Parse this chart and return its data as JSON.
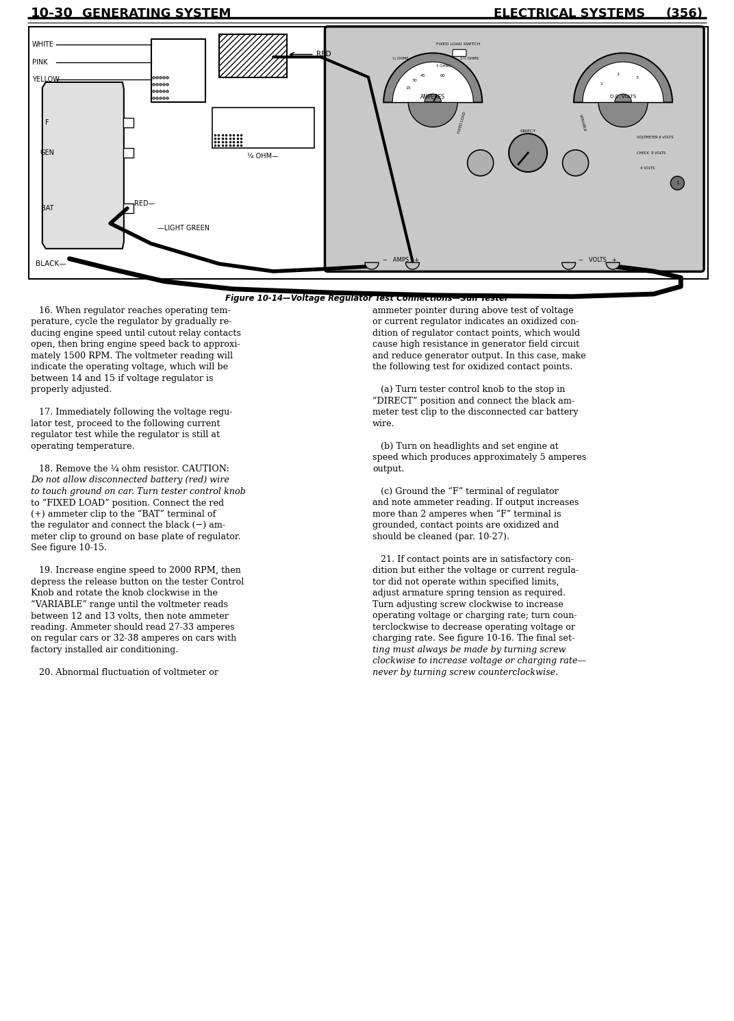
{
  "page_width": 10.52,
  "page_height": 14.64,
  "dpi": 100,
  "bg_color": "#ffffff",
  "header_left": "10-30",
  "header_left2": "GENERATING SYSTEM",
  "header_right": "ELECTRICAL SYSTEMS",
  "header_right2": "(356)",
  "figure_caption": "Figure 10-14—Voltage Regulator Test Connections—Sun Tester",
  "body_left_col_lines": [
    {
      "text": "   16. When regulator reaches operating tem-",
      "style": "normal"
    },
    {
      "text": "perature, cycle the regulator by gradually re-",
      "style": "normal"
    },
    {
      "text": "ducing engine speed until cutout relay contacts",
      "style": "normal"
    },
    {
      "text": "open, then bring engine speed back to approxi-",
      "style": "normal"
    },
    {
      "text": "mately 1500 RPM. The voltmeter reading will",
      "style": "normal"
    },
    {
      "text": "indicate the operating voltage, which will be",
      "style": "normal"
    },
    {
      "text": "between 14 and 15 if voltage regulator is",
      "style": "normal"
    },
    {
      "text": "properly adjusted.",
      "style": "normal"
    },
    {
      "text": "",
      "style": "normal"
    },
    {
      "text": "   17. Immediately following the voltage regu-",
      "style": "normal"
    },
    {
      "text": "lator test, proceed to the following current",
      "style": "normal"
    },
    {
      "text": "regulator test while the regulator is still at",
      "style": "normal"
    },
    {
      "text": "operating temperature.",
      "style": "normal"
    },
    {
      "text": "",
      "style": "normal"
    },
    {
      "text": "   18. Remove the ¼ ohm resistor. CAUTION:",
      "style": "normal"
    },
    {
      "text": "Do not allow disconnected battery (red) wire",
      "style": "italic"
    },
    {
      "text": "to touch ground on car. Turn tester control knob",
      "style": "italic"
    },
    {
      "text": "to “FIXED LOAD” position. Connect the red",
      "style": "normal"
    },
    {
      "text": "(+) ammeter clip to the “BAT” terminal of",
      "style": "normal"
    },
    {
      "text": "the regulator and connect the black (−) am-",
      "style": "normal"
    },
    {
      "text": "meter clip to ground on base plate of regulator.",
      "style": "normal"
    },
    {
      "text": "See figure 10-15.",
      "style": "normal"
    },
    {
      "text": "",
      "style": "normal"
    },
    {
      "text": "   19. Increase engine speed to 2000 RPM, then",
      "style": "normal"
    },
    {
      "text": "depress the release button on the tester Control",
      "style": "normal"
    },
    {
      "text": "Knob and rotate the knob clockwise in the",
      "style": "normal"
    },
    {
      "text": "“VARIABLE” range until the voltmeter reads",
      "style": "normal"
    },
    {
      "text": "between 12 and 13 volts, then note ammeter",
      "style": "normal"
    },
    {
      "text": "reading. Ammeter should read 27-33 amperes",
      "style": "normal"
    },
    {
      "text": "on regular cars or 32-38 amperes on cars with",
      "style": "normal"
    },
    {
      "text": "factory installed air conditioning.",
      "style": "normal"
    },
    {
      "text": "",
      "style": "normal"
    },
    {
      "text": "   20. Abnormal fluctuation of voltmeter or",
      "style": "normal"
    }
  ],
  "body_right_col_lines": [
    {
      "text": "ammeter pointer during above test of voltage",
      "style": "normal"
    },
    {
      "text": "or current regulator indicates an oxidized con-",
      "style": "normal"
    },
    {
      "text": "dition of regulator contact points, which would",
      "style": "normal"
    },
    {
      "text": "cause high resistance in generator field circuit",
      "style": "normal"
    },
    {
      "text": "and reduce generator output. In this case, make",
      "style": "normal"
    },
    {
      "text": "the following test for oxidized contact points.",
      "style": "normal"
    },
    {
      "text": "",
      "style": "normal"
    },
    {
      "text": "   (a) Turn tester control knob to the stop in",
      "style": "normal"
    },
    {
      "text": "“DIRECT” position and connect the black am-",
      "style": "normal"
    },
    {
      "text": "meter test clip to the disconnected car battery",
      "style": "normal"
    },
    {
      "text": "wire.",
      "style": "normal"
    },
    {
      "text": "",
      "style": "normal"
    },
    {
      "text": "   (b) Turn on headlights and set engine at",
      "style": "normal"
    },
    {
      "text": "speed which produces approximately 5 amperes",
      "style": "normal"
    },
    {
      "text": "output.",
      "style": "normal"
    },
    {
      "text": "",
      "style": "normal"
    },
    {
      "text": "   (c) Ground the “F” terminal of regulator",
      "style": "normal"
    },
    {
      "text": "and note ammeter reading. If output increases",
      "style": "normal"
    },
    {
      "text": "more than 2 amperes when “F” terminal is",
      "style": "normal"
    },
    {
      "text": "grounded, contact points are oxidized and",
      "style": "normal"
    },
    {
      "text": "should be cleaned (par. 10-27).",
      "style": "normal"
    },
    {
      "text": "",
      "style": "normal"
    },
    {
      "text": "   21. If contact points are in satisfactory con-",
      "style": "normal"
    },
    {
      "text": "dition but either the voltage or current regula-",
      "style": "normal"
    },
    {
      "text": "tor did not operate within specified limits,",
      "style": "normal"
    },
    {
      "text": "adjust armature spring tension as required.",
      "style": "normal"
    },
    {
      "text": "Turn adjusting screw clockwise to increase",
      "style": "normal"
    },
    {
      "text": "operating voltage or charging rate; turn coun-",
      "style": "normal"
    },
    {
      "text": "terclockwise to decrease operating voltage or",
      "style": "normal"
    },
    {
      "text": "charging rate. See figure 10-16. The final set-",
      "style": "normal"
    },
    {
      "text": "ting must always be made by turning screw",
      "style": "italic"
    },
    {
      "text": "clockwise to increase voltage or charging rate—",
      "style": "italic"
    },
    {
      "text": "never by turning screw counterclockwise.",
      "style": "italic"
    }
  ]
}
